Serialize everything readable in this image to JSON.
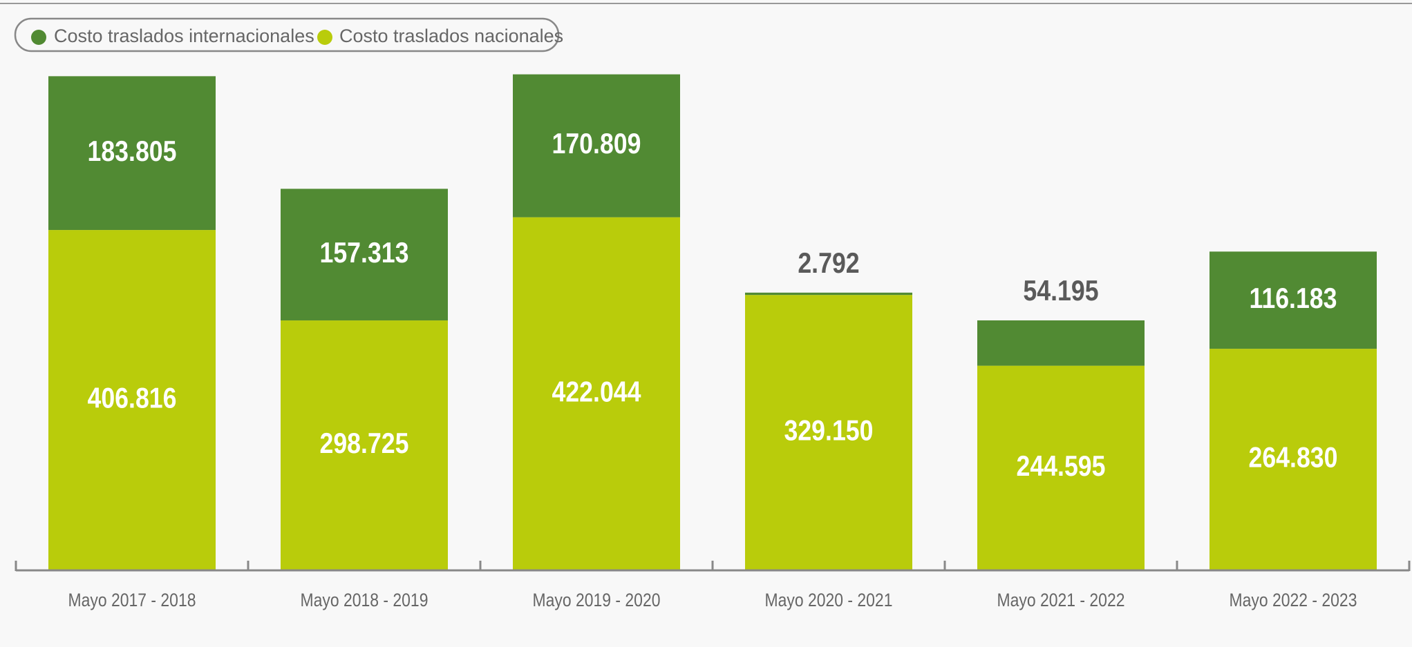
{
  "chart_data": {
    "type": "stacked_bar",
    "categories": [
      "Mayo 2017 - 2018",
      "Mayo 2018 - 2019",
      "Mayo 2019 - 2020",
      "Mayo 2020 - 2021",
      "Mayo 2021 - 2022",
      "Mayo 2022 - 2023"
    ],
    "series": [
      {
        "name": "Costo traslados internacionales",
        "color": "#518a33",
        "values": [
          183805,
          157313,
          170809,
          2792,
          54195,
          116183
        ],
        "value_labels": [
          "183.805",
          "157.313",
          "170.809",
          "2.792",
          "54.195",
          "116.183"
        ]
      },
      {
        "name": "Costo traslados nacionales",
        "color": "#b9cc0b",
        "values": [
          406816,
          298725,
          422044,
          329150,
          244595,
          264830
        ],
        "value_labels": [
          "406.816",
          "298.725",
          "422.044",
          "329.150",
          "244.595",
          "264.830"
        ]
      }
    ],
    "ylim": [
      0,
      600000
    ]
  }
}
